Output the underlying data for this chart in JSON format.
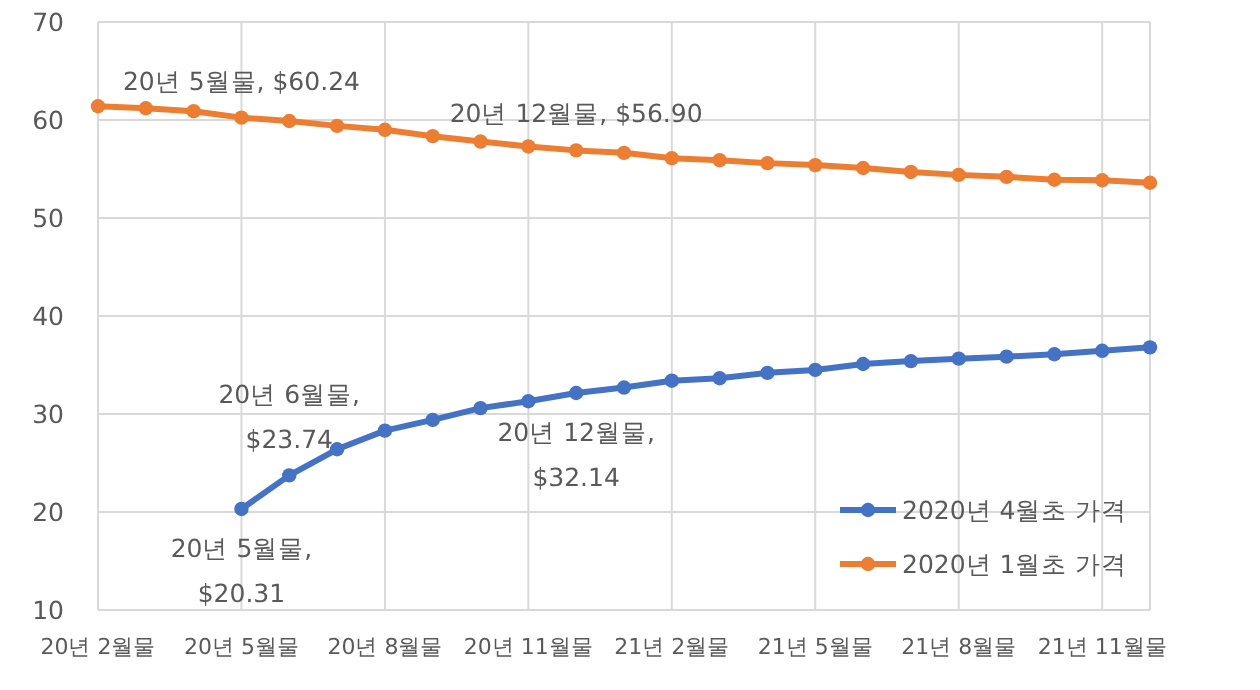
{
  "chart_data": {
    "type": "line",
    "categories": [
      "20년 2월물",
      null,
      null,
      "20년 5월물",
      null,
      null,
      "20년 8월물",
      null,
      null,
      "20년 11월물",
      null,
      null,
      "21년 2월물",
      null,
      null,
      "21년 5월물",
      null,
      null,
      "21년 8월물",
      null,
      null,
      "21년 11월물",
      null
    ],
    "series": [
      {
        "name": "2020년 4월초 가격",
        "color": "#4472c4",
        "values": [
          null,
          null,
          null,
          20.31,
          23.74,
          26.4,
          28.3,
          29.4,
          30.6,
          31.3,
          32.14,
          32.7,
          33.4,
          33.65,
          34.2,
          34.5,
          35.1,
          35.4,
          35.65,
          35.85,
          36.1,
          36.45,
          36.8
        ]
      },
      {
        "name": "2020년 1월초 가격",
        "color": "#ed7d31",
        "values": [
          61.4,
          61.2,
          60.9,
          60.24,
          59.9,
          59.4,
          59.0,
          58.35,
          57.8,
          57.3,
          56.9,
          56.65,
          56.1,
          55.9,
          55.6,
          55.4,
          55.1,
          54.7,
          54.4,
          54.2,
          53.9,
          53.85,
          53.6
        ]
      }
    ],
    "ylim": [
      10,
      70
    ],
    "yticks": [
      10,
      20,
      30,
      40,
      50,
      60,
      70
    ],
    "grid": true,
    "legend": "bottom right",
    "marker": "circle",
    "annotations": [
      {
        "text": "20년 5월물, $60.24",
        "y": 60.24
      },
      {
        "text": "20년 12월물, $56.90",
        "y": 56.9
      },
      {
        "text": "20년 5월물, $20.31",
        "y": 20.31
      },
      {
        "text": "20년 6월물, $23.74",
        "y": 23.74
      },
      {
        "text": "20년 12월물, $32.14",
        "y": 32.14
      }
    ]
  }
}
